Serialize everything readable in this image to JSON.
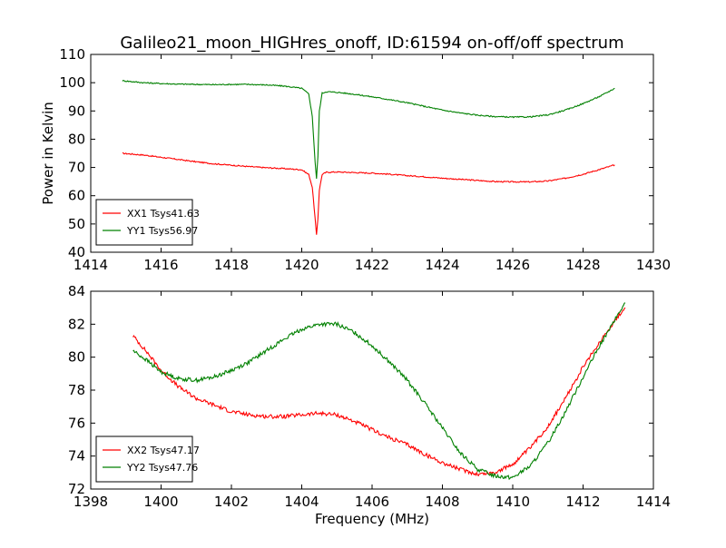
{
  "title": "Galileo21_moon_HIGHres_onoff, ID:61594 on-off/off spectrum",
  "colors": {
    "red": "#ff0000",
    "green": "#008000"
  },
  "chart_data": [
    {
      "type": "line",
      "xlim": [
        1414,
        1430
      ],
      "ylim": [
        40,
        110
      ],
      "xticks": [
        1414,
        1416,
        1418,
        1420,
        1422,
        1424,
        1426,
        1428,
        1430
      ],
      "yticks": [
        40,
        50,
        60,
        70,
        80,
        90,
        100,
        110
      ],
      "xlabel": "",
      "ylabel": "Power in Kelvin",
      "legend_position": "lower-left",
      "series": [
        {
          "name": "XX1 Tsys41.63",
          "color": "#ff0000",
          "x": [
            1414.9,
            1415.5,
            1416,
            1416.5,
            1417,
            1417.5,
            1418,
            1418.5,
            1419,
            1419.5,
            1420,
            1420.2,
            1420.3,
            1420.38,
            1420.42,
            1420.46,
            1420.5,
            1420.58,
            1420.7,
            1421,
            1421.5,
            1422,
            1422.5,
            1423,
            1423.5,
            1424,
            1424.5,
            1425,
            1425.5,
            1426,
            1426.5,
            1427,
            1427.5,
            1428,
            1428.5,
            1428.9
          ],
          "y": [
            75,
            74.4,
            73.6,
            72.8,
            72,
            71.3,
            70.8,
            70.3,
            69.9,
            69.6,
            69.2,
            67.5,
            63,
            52,
            46,
            52,
            62,
            67.5,
            68.3,
            68.4,
            68.2,
            68,
            67.6,
            67.1,
            66.7,
            66.2,
            65.8,
            65.4,
            65,
            64.9,
            64.9,
            65.2,
            66.2,
            67.6,
            69.4,
            70.9
          ]
        },
        {
          "name": "YY1 Tsys56.97",
          "color": "#008000",
          "x": [
            1414.9,
            1415.5,
            1416,
            1416.5,
            1417,
            1417.5,
            1418,
            1418.5,
            1419,
            1419.5,
            1420,
            1420.2,
            1420.3,
            1420.38,
            1420.42,
            1420.46,
            1420.5,
            1420.58,
            1420.7,
            1421,
            1421.5,
            1422,
            1422.5,
            1423,
            1423.5,
            1424,
            1424.5,
            1425,
            1425.5,
            1426,
            1426.5,
            1427,
            1427.5,
            1428,
            1428.5,
            1428.9
          ],
          "y": [
            100.7,
            100,
            99.7,
            99.5,
            99.4,
            99.3,
            99.4,
            99.4,
            99.2,
            98.8,
            98,
            96,
            88,
            72,
            66,
            74,
            90,
            96.3,
            96.8,
            96.6,
            95.9,
            95,
            94,
            92.9,
            91.6,
            90.3,
            89.3,
            88.5,
            88,
            87.8,
            87.9,
            88.6,
            90.3,
            92.6,
            95.3,
            98
          ]
        }
      ]
    },
    {
      "type": "line",
      "xlim": [
        1398,
        1414
      ],
      "ylim": [
        72,
        84
      ],
      "xticks": [
        1398,
        1400,
        1402,
        1404,
        1406,
        1408,
        1410,
        1412,
        1414
      ],
      "yticks": [
        72,
        74,
        76,
        78,
        80,
        82,
        84
      ],
      "xlabel": "Frequency (MHz)",
      "ylabel": "",
      "legend_position": "lower-left",
      "series": [
        {
          "name": "XX2 Tsys47.17",
          "color": "#ff0000",
          "x": [
            1399.2,
            1399.6,
            1400,
            1400.5,
            1401,
            1401.5,
            1402,
            1402.5,
            1403,
            1403.5,
            1404,
            1404.5,
            1405,
            1405.5,
            1406,
            1406.5,
            1407,
            1407.5,
            1408,
            1408.5,
            1409,
            1409.5,
            1410,
            1410.5,
            1411,
            1411.5,
            1412,
            1412.5,
            1413,
            1413.2
          ],
          "y": [
            81.3,
            80.3,
            79.2,
            78.2,
            77.5,
            77.1,
            76.7,
            76.5,
            76.4,
            76.4,
            76.5,
            76.6,
            76.5,
            76.1,
            75.6,
            75.1,
            74.7,
            74.1,
            73.6,
            73.2,
            72.9,
            73,
            73.5,
            74.5,
            75.8,
            77.5,
            79.4,
            81,
            82.5,
            83
          ]
        },
        {
          "name": "YY2 Tsys47.76",
          "color": "#008000",
          "x": [
            1399.2,
            1399.6,
            1400,
            1400.5,
            1401,
            1401.5,
            1402,
            1402.5,
            1403,
            1403.5,
            1404,
            1404.5,
            1405,
            1405.5,
            1406,
            1406.5,
            1407,
            1407.5,
            1408,
            1408.5,
            1409,
            1409.5,
            1410,
            1410.5,
            1411,
            1411.5,
            1412,
            1412.5,
            1413,
            1413.2
          ],
          "y": [
            80.4,
            79.8,
            79.1,
            78.7,
            78.6,
            78.8,
            79.2,
            79.7,
            80.4,
            81.1,
            81.7,
            82,
            82,
            81.5,
            80.7,
            79.7,
            78.6,
            77.2,
            75.7,
            74.2,
            73.2,
            72.8,
            72.7,
            73.4,
            74.8,
            76.7,
            78.8,
            80.8,
            82.6,
            83.3
          ]
        }
      ]
    }
  ]
}
